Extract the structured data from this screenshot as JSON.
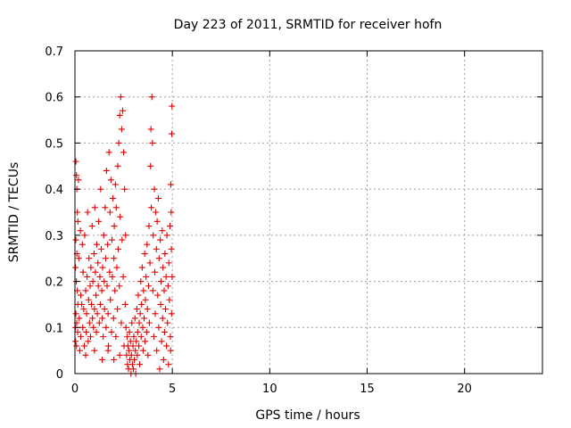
{
  "chart_data": {
    "type": "scatter",
    "title": "Day 223 of 2011, SRMTID for receiver hofn",
    "xlabel": "GPS time / hours",
    "ylabel": "SRMTID / TECUs",
    "xlim": [
      0,
      24
    ],
    "ylim": [
      0,
      0.7
    ],
    "xticks": [
      0,
      5,
      10,
      15,
      20
    ],
    "yticks": [
      0,
      0.1,
      0.2,
      0.3,
      0.4,
      0.5,
      0.6,
      0.7
    ],
    "grid": true,
    "legend": "none",
    "marker": "plus",
    "color": "#e00000",
    "series": [
      {
        "points": [
          [
            0.05,
            0.46
          ],
          [
            0.08,
            0.43
          ],
          [
            0.1,
            0.4
          ],
          [
            0.12,
            0.35
          ],
          [
            0.15,
            0.33
          ],
          [
            0.05,
            0.29
          ],
          [
            0.1,
            0.26
          ],
          [
            0.03,
            0.23
          ],
          [
            0.07,
            0.2
          ],
          [
            0.12,
            0.18
          ],
          [
            0.15,
            0.15
          ],
          [
            0.05,
            0.13
          ],
          [
            0.09,
            0.11
          ],
          [
            0.14,
            0.09
          ],
          [
            0.03,
            0.07
          ],
          [
            0.08,
            0.06
          ],
          [
            0.18,
            0.42
          ],
          [
            0.2,
            0.25
          ],
          [
            0.22,
            0.12
          ],
          [
            0.25,
            0.05
          ],
          [
            0.28,
            0.31
          ],
          [
            0.3,
            0.17
          ],
          [
            0.35,
            0.15
          ],
          [
            0.38,
            0.28
          ],
          [
            0.4,
            0.1
          ],
          [
            0.42,
            0.22
          ],
          [
            0.45,
            0.14
          ],
          [
            0.48,
            0.06
          ],
          [
            0.5,
            0.3
          ],
          [
            0.55,
            0.18
          ],
          [
            0.58,
            0.09
          ],
          [
            0.6,
            0.13
          ],
          [
            0.62,
            0.21
          ],
          [
            0.65,
            0.35
          ],
          [
            0.68,
            0.07
          ],
          [
            0.7,
            0.16
          ],
          [
            0.72,
            0.25
          ],
          [
            0.75,
            0.11
          ],
          [
            0.78,
            0.19
          ],
          [
            0.8,
            0.08
          ],
          [
            0.82,
            0.23
          ],
          [
            0.85,
            0.15
          ],
          [
            0.88,
            0.32
          ],
          [
            0.9,
            0.12
          ],
          [
            0.92,
            0.2
          ],
          [
            0.95,
            0.1
          ],
          [
            0.98,
            0.26
          ],
          [
            1.0,
            0.14
          ],
          [
            1.02,
            0.36
          ],
          [
            1.05,
            0.22
          ],
          [
            1.08,
            0.17
          ],
          [
            1.1,
            0.09
          ],
          [
            1.12,
            0.28
          ],
          [
            1.15,
            0.13
          ],
          [
            1.18,
            0.24
          ],
          [
            1.2,
            0.19
          ],
          [
            1.22,
            0.33
          ],
          [
            1.25,
            0.11
          ],
          [
            1.28,
            0.21
          ],
          [
            1.3,
            0.15
          ],
          [
            1.32,
            0.4
          ],
          [
            1.35,
            0.27
          ],
          [
            1.38,
            0.18
          ],
          [
            1.4,
            0.12
          ],
          [
            1.42,
            0.23
          ],
          [
            1.45,
            0.08
          ],
          [
            1.48,
            0.3
          ],
          [
            1.5,
            0.2
          ],
          [
            1.52,
            0.14
          ],
          [
            1.55,
            0.36
          ],
          [
            1.58,
            0.25
          ],
          [
            1.6,
            0.1
          ],
          [
            1.62,
            0.44
          ],
          [
            1.65,
            0.19
          ],
          [
            1.68,
            0.28
          ],
          [
            1.7,
            0.13
          ],
          [
            1.72,
            0.06
          ],
          [
            1.75,
            0.48
          ],
          [
            1.78,
            0.22
          ],
          [
            1.8,
            0.35
          ],
          [
            1.82,
            0.16
          ],
          [
            1.85,
            0.42
          ],
          [
            1.88,
            0.09
          ],
          [
            1.9,
            0.29
          ],
          [
            1.92,
            0.21
          ],
          [
            1.95,
            0.38
          ],
          [
            1.98,
            0.12
          ],
          [
            2.0,
            0.25
          ],
          [
            2.02,
            0.32
          ],
          [
            2.05,
            0.18
          ],
          [
            2.08,
            0.41
          ],
          [
            2.1,
            0.08
          ],
          [
            2.12,
            0.36
          ],
          [
            2.15,
            0.23
          ],
          [
            2.18,
            0.14
          ],
          [
            2.2,
            0.45
          ],
          [
            2.22,
            0.27
          ],
          [
            2.25,
            0.5
          ],
          [
            2.28,
            0.19
          ],
          [
            2.3,
            0.56
          ],
          [
            2.32,
            0.34
          ],
          [
            2.35,
            0.6
          ],
          [
            2.38,
            0.11
          ],
          [
            2.4,
            0.53
          ],
          [
            2.42,
            0.29
          ],
          [
            2.45,
            0.57
          ],
          [
            2.48,
            0.21
          ],
          [
            2.5,
            0.48
          ],
          [
            2.52,
            0.06
          ],
          [
            2.55,
            0.4
          ],
          [
            2.58,
            0.15
          ],
          [
            2.6,
            0.3
          ],
          [
            2.62,
            0.1
          ],
          [
            2.65,
            0.04
          ],
          [
            2.68,
            0.08
          ],
          [
            2.7,
            0.02
          ],
          [
            2.72,
            0.06
          ],
          [
            2.75,
            0.01
          ],
          [
            2.78,
            0.05
          ],
          [
            2.8,
            0.09
          ],
          [
            2.82,
            0.03
          ],
          [
            2.85,
            0.07
          ],
          [
            2.88,
            0.0
          ],
          [
            2.9,
            0.04
          ],
          [
            2.92,
            0.11
          ],
          [
            2.95,
            0.02
          ],
          [
            2.98,
            0.06
          ],
          [
            3.0,
            0.01
          ],
          [
            3.02,
            0.08
          ],
          [
            3.05,
            0.03
          ],
          [
            3.08,
            0.12
          ],
          [
            3.1,
            0.05
          ],
          [
            3.12,
            0.0
          ],
          [
            3.15,
            0.07
          ],
          [
            3.18,
            0.14
          ],
          [
            3.2,
            0.04
          ],
          [
            3.22,
            0.09
          ],
          [
            3.25,
            0.17
          ],
          [
            3.28,
            0.06
          ],
          [
            3.3,
            0.11
          ],
          [
            3.32,
            0.02
          ],
          [
            3.35,
            0.13
          ],
          [
            3.38,
            0.2
          ],
          [
            3.4,
            0.08
          ],
          [
            3.42,
            0.15
          ],
          [
            3.45,
            0.23
          ],
          [
            3.48,
            0.1
          ],
          [
            3.5,
            0.05
          ],
          [
            3.52,
            0.18
          ],
          [
            3.55,
            0.12
          ],
          [
            3.58,
            0.26
          ],
          [
            3.6,
            0.07
          ],
          [
            3.62,
            0.16
          ],
          [
            3.65,
            0.21
          ],
          [
            3.68,
            0.09
          ],
          [
            3.7,
            0.28
          ],
          [
            3.72,
            0.14
          ],
          [
            3.75,
            0.04
          ],
          [
            3.78,
            0.19
          ],
          [
            3.8,
            0.32
          ],
          [
            3.82,
            0.11
          ],
          [
            3.85,
            0.24
          ],
          [
            3.88,
            0.45
          ],
          [
            3.9,
            0.53
          ],
          [
            3.92,
            0.36
          ],
          [
            3.95,
            0.6
          ],
          [
            3.98,
            0.5
          ],
          [
            4.0,
            0.18
          ],
          [
            4.02,
            0.3
          ],
          [
            4.05,
            0.08
          ],
          [
            4.08,
            0.4
          ],
          [
            4.1,
            0.22
          ],
          [
            4.12,
            0.13
          ],
          [
            4.15,
            0.35
          ],
          [
            4.18,
            0.27
          ],
          [
            4.2,
            0.05
          ],
          [
            4.22,
            0.33
          ],
          [
            4.25,
            0.17
          ],
          [
            4.28,
            0.38
          ],
          [
            4.3,
            0.1
          ],
          [
            4.32,
            0.25
          ],
          [
            4.35,
            0.01
          ],
          [
            4.38,
            0.29
          ],
          [
            4.4,
            0.15
          ],
          [
            4.42,
            0.2
          ],
          [
            4.45,
            0.07
          ],
          [
            4.48,
            0.31
          ],
          [
            4.5,
            0.12
          ],
          [
            4.52,
            0.23
          ],
          [
            4.55,
            0.03
          ],
          [
            4.58,
            0.18
          ],
          [
            4.6,
            0.09
          ],
          [
            4.62,
            0.26
          ],
          [
            4.65,
            0.14
          ],
          [
            4.68,
            0.21
          ],
          [
            4.7,
            0.06
          ],
          [
            4.72,
            0.3
          ],
          [
            4.75,
            0.11
          ],
          [
            4.78,
            0.19
          ],
          [
            4.8,
            0.02
          ],
          [
            4.82,
            0.24
          ],
          [
            4.85,
            0.16
          ],
          [
            4.88,
            0.32
          ],
          [
            4.9,
            0.08
          ],
          [
            4.92,
            0.41
          ],
          [
            4.95,
            0.27
          ],
          [
            4.97,
            0.52
          ],
          [
            4.98,
            0.58
          ],
          [
            4.96,
            0.13
          ],
          [
            4.94,
            0.35
          ],
          [
            4.99,
            0.21
          ],
          [
            4.91,
            0.05
          ],
          [
            0.02,
            0.1
          ],
          [
            0.3,
            0.08
          ],
          [
            0.55,
            0.04
          ],
          [
            1.0,
            0.05
          ],
          [
            1.4,
            0.03
          ],
          [
            1.7,
            0.05
          ],
          [
            2.0,
            0.03
          ],
          [
            2.3,
            0.04
          ]
        ]
      }
    ]
  }
}
